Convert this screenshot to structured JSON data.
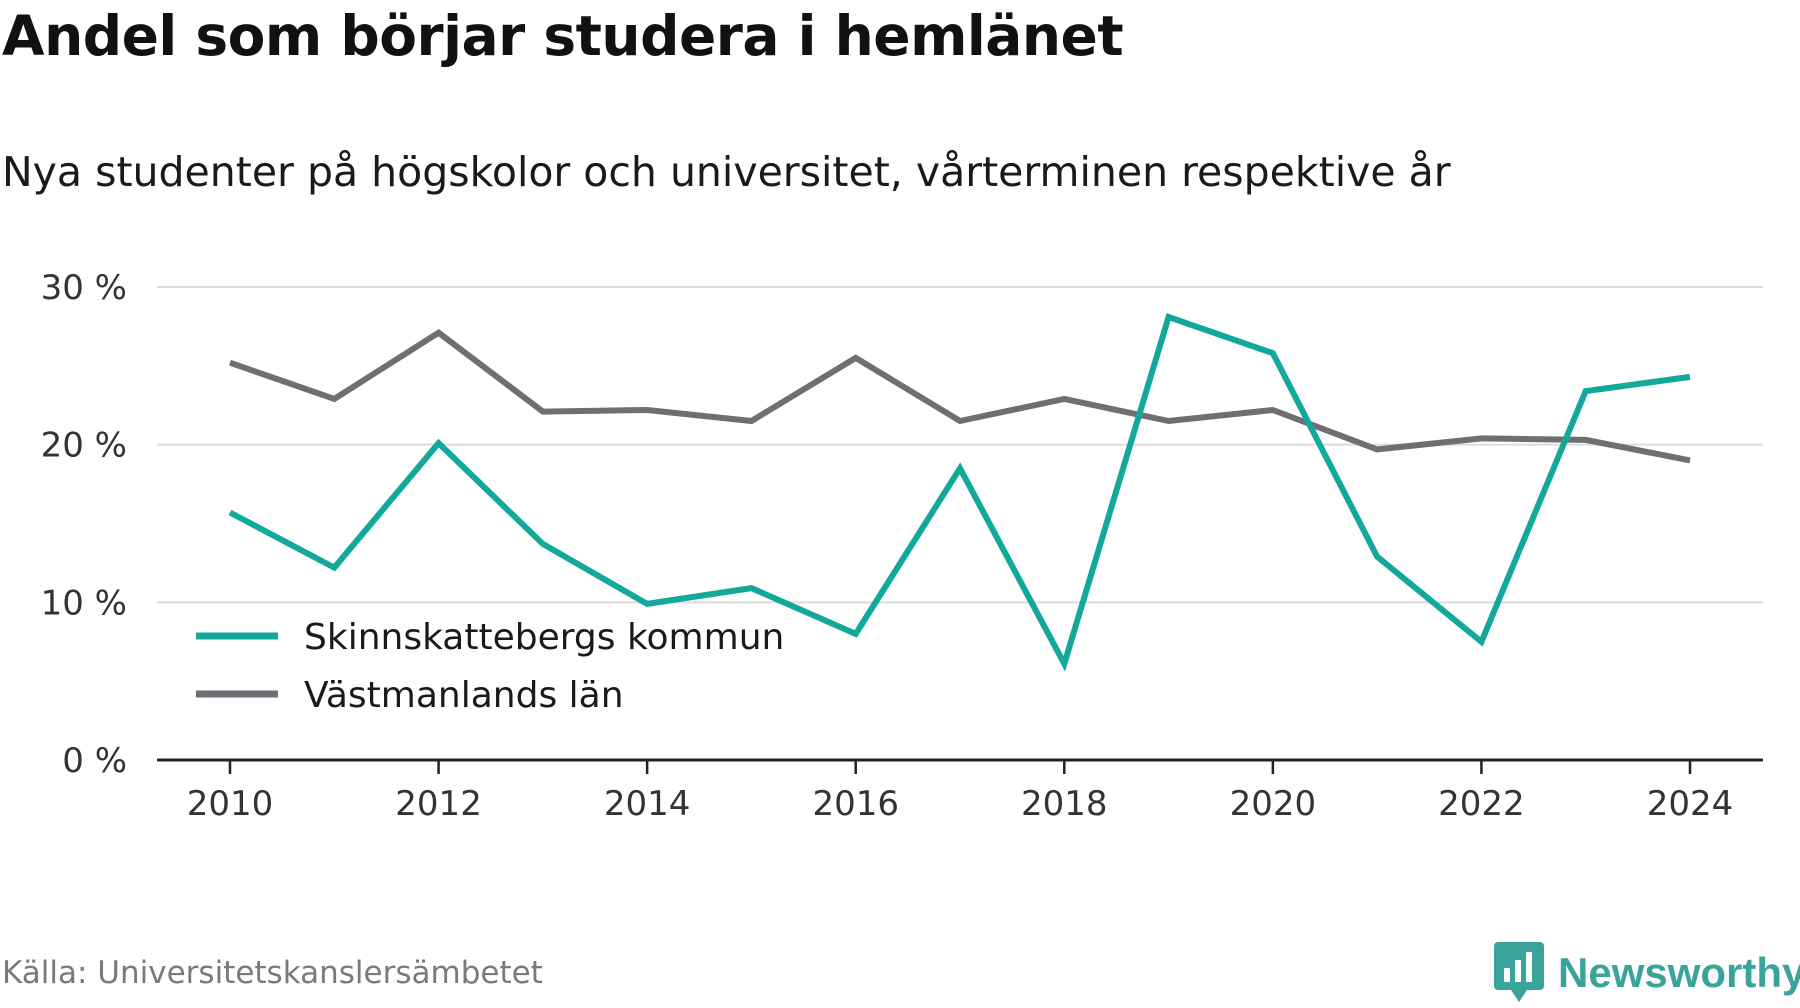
{
  "header": {
    "title": "Andel som börjar studera i hemlänet",
    "subtitle": "Nya studenter på högskolor och universitet, vårterminen respektive år"
  },
  "footer": {
    "source": "Källa: Universitetskanslersämbetet",
    "brand": "Newsworthy",
    "brand_icon": "newsworthy-logo-icon",
    "brand_color": "#3aa39a"
  },
  "chart_data": {
    "type": "line",
    "x": [
      2010,
      2011,
      2012,
      2013,
      2014,
      2015,
      2016,
      2017,
      2018,
      2019,
      2020,
      2021,
      2022,
      2023,
      2024
    ],
    "xticks": [
      2010,
      2012,
      2014,
      2016,
      2018,
      2020,
      2022,
      2024
    ],
    "xtick_labels": [
      "2010",
      "2012",
      "2014",
      "2016",
      "2018",
      "2020",
      "2022",
      "2024"
    ],
    "yticks": [
      0,
      10,
      20,
      30
    ],
    "ytick_labels": [
      "0 %",
      "10 %",
      "20 %",
      "30 %"
    ],
    "ylim": [
      0,
      30
    ],
    "xlim": [
      2009.3,
      2024.7
    ],
    "grid": true,
    "legend_position": "bottom-left",
    "series": [
      {
        "name": "Skinnskattebergs kommun",
        "color": "#12a89a",
        "values": [
          15.7,
          12.2,
          20.1,
          13.7,
          9.9,
          10.9,
          8.0,
          18.5,
          6.1,
          28.1,
          25.8,
          12.9,
          7.5,
          23.4,
          24.3
        ]
      },
      {
        "name": "Västmanlands län",
        "color": "#6f6e74",
        "values": [
          25.2,
          22.9,
          27.1,
          22.1,
          22.2,
          21.5,
          25.5,
          21.5,
          22.9,
          21.5,
          22.2,
          19.7,
          20.4,
          20.3,
          19.0
        ]
      }
    ]
  }
}
